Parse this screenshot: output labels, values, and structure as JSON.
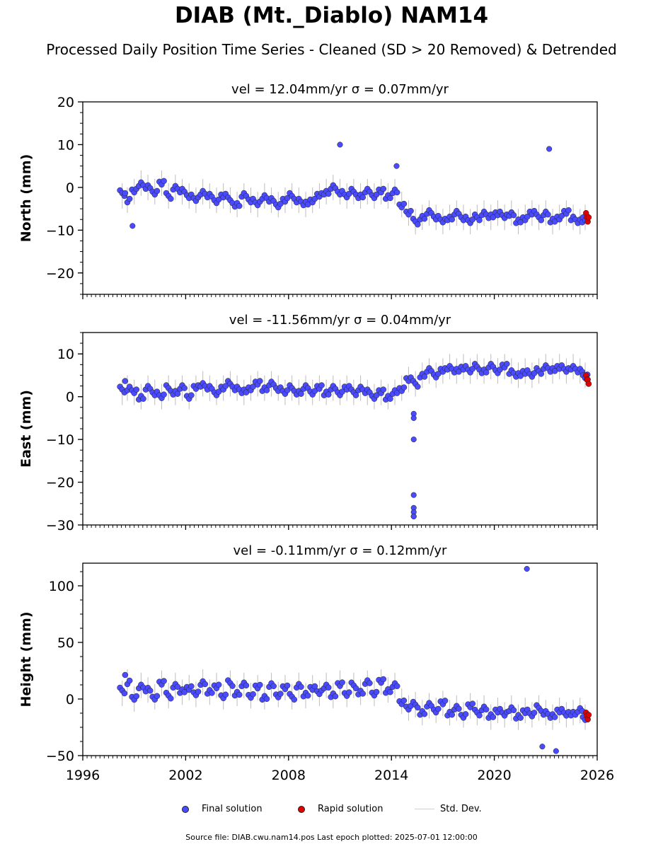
{
  "figure": {
    "title": "DIAB (Mt._Diablo) NAM14",
    "subtitle": "Processed Daily Position Time Series - Cleaned (SD > 20 Removed) & Detrended",
    "footer": "Source file: DIAB.cwu.nam14.pos  Last epoch plotted: 2025-07-01 12:00:00"
  },
  "legend": {
    "final": "Final solution",
    "rapid": "Rapid solution",
    "std": "Std. Dev."
  },
  "colors": {
    "final": "#4a4aff",
    "rapid": "#e00000",
    "std": "#bdbdbd",
    "edge": "#222222"
  },
  "chart_data": [
    {
      "type": "scatter",
      "title": "vel = 12.04mm/yr   σ = 0.07mm/yr",
      "ylabel": "North (mm)",
      "xlim": [
        1996,
        2026
      ],
      "ylim": [
        -25,
        20
      ],
      "xticks": [
        1996,
        2002,
        2008,
        2014,
        2020,
        2026
      ],
      "yticks": [
        20,
        10,
        0,
        -10,
        -20
      ],
      "ytick_labels": [
        "20",
        "10",
        "0",
        "−10",
        "−20"
      ],
      "show_xtick_labels": false,
      "series": [
        {
          "name": "Final solution",
          "x": [
            1998.3,
            1998.6,
            1999.0,
            1999.4,
            1999.8,
            2000.2,
            2000.6,
            2001.0,
            2001.4,
            2001.8,
            2002.2,
            2002.6,
            2003.0,
            2003.4,
            2003.8,
            2004.2,
            2004.6,
            2005.0,
            2005.4,
            2005.8,
            2006.2,
            2006.6,
            2007.0,
            2007.4,
            2007.8,
            2008.2,
            2008.6,
            2009.0,
            2009.4,
            2009.8,
            2010.2,
            2010.6,
            2011.0,
            2011.4,
            2011.8,
            2012.2,
            2012.6,
            2013.0,
            2013.4,
            2013.8,
            2014.2,
            2014.6,
            2015.0,
            2015.4,
            2015.8,
            2016.2,
            2016.6,
            2017.0,
            2017.4,
            2017.8,
            2018.2,
            2018.6,
            2019.0,
            2019.4,
            2019.8,
            2020.2,
            2020.6,
            2021.0,
            2021.4,
            2021.8,
            2022.2,
            2022.6,
            2023.0,
            2023.4,
            2023.8,
            2024.2,
            2024.6,
            2025.0,
            2025.3
          ],
          "y": [
            -2,
            -3,
            -1,
            1,
            0,
            -1,
            1,
            -2,
            0,
            -1,
            -2,
            -3,
            -1,
            -2,
            -3,
            -2,
            -3,
            -4,
            -2,
            -3,
            -4,
            -2,
            -3,
            -4,
            -3,
            -2,
            -3,
            -4,
            -3,
            -2,
            -1,
            0,
            -1,
            -2,
            -1,
            -2,
            -1,
            -2,
            -1,
            -2,
            -1,
            -4,
            -6,
            -8,
            -7,
            -6,
            -7,
            -8,
            -7,
            -6,
            -7,
            -8,
            -7,
            -6,
            -7,
            -6,
            -7,
            -6,
            -8,
            -7,
            -6,
            -7,
            -6,
            -8,
            -7,
            -6,
            -7,
            -8,
            -7
          ]
        },
        {
          "name": "Rapid solution",
          "x": [
            2025.35,
            2025.4,
            2025.45,
            2025.5
          ],
          "y": [
            -6,
            -7,
            -8,
            -7
          ]
        }
      ],
      "outliers": {
        "x": [
          1998.9,
          2011.0,
          2014.3,
          2023.2
        ],
        "y": [
          -9,
          10,
          5,
          9
        ]
      }
    },
    {
      "type": "scatter",
      "title": "vel = -11.56mm/yr   σ = 0.04mm/yr",
      "ylabel": "East (mm)",
      "xlim": [
        1996,
        2026
      ],
      "ylim": [
        -30,
        15
      ],
      "xticks": [
        1996,
        2002,
        2008,
        2014,
        2020,
        2026
      ],
      "yticks": [
        10,
        0,
        -10,
        -20,
        -30
      ],
      "ytick_labels": [
        "10",
        "0",
        "−10",
        "−20",
        "−30"
      ],
      "show_xtick_labels": false,
      "series": [
        {
          "name": "Final solution",
          "x": [
            1998.3,
            1998.6,
            1999.0,
            1999.4,
            1999.8,
            2000.2,
            2000.6,
            2001.0,
            2001.4,
            2001.8,
            2002.2,
            2002.6,
            2003.0,
            2003.4,
            2003.8,
            2004.2,
            2004.6,
            2005.0,
            2005.4,
            2005.8,
            2006.2,
            2006.6,
            2007.0,
            2007.4,
            2007.8,
            2008.2,
            2008.6,
            2009.0,
            2009.4,
            2009.8,
            2010.2,
            2010.6,
            2011.0,
            2011.4,
            2011.8,
            2012.2,
            2012.6,
            2013.0,
            2013.4,
            2013.8,
            2014.2,
            2014.6,
            2015.0,
            2015.4,
            2015.8,
            2016.2,
            2016.6,
            2017.0,
            2017.4,
            2017.8,
            2018.2,
            2018.6,
            2019.0,
            2019.4,
            2019.8,
            2020.2,
            2020.6,
            2021.0,
            2021.4,
            2021.8,
            2022.2,
            2022.6,
            2023.0,
            2023.4,
            2023.8,
            2024.2,
            2024.6,
            2025.0,
            2025.3
          ],
          "y": [
            1,
            2,
            1,
            0,
            2,
            1,
            0,
            2,
            1,
            2,
            0,
            2,
            3,
            2,
            1,
            2,
            3,
            2,
            1,
            2,
            3,
            2,
            3,
            2,
            1,
            2,
            1,
            2,
            1,
            2,
            1,
            2,
            1,
            2,
            1,
            2,
            1,
            0,
            1,
            0,
            1,
            2,
            4,
            3,
            5,
            6,
            5,
            6,
            7,
            6,
            7,
            6,
            7,
            6,
            7,
            6,
            7,
            6,
            5,
            6,
            5,
            6,
            7,
            6,
            7,
            6,
            7,
            6,
            5
          ]
        },
        {
          "name": "Rapid solution",
          "x": [
            2025.35,
            2025.4,
            2025.45,
            2025.5
          ],
          "y": [
            5,
            4,
            4,
            3
          ]
        }
      ],
      "outliers": {
        "x": [
          2015.3,
          2015.3,
          2015.3,
          2015.3,
          2015.3,
          2015.3,
          2015.3,
          2015.3
        ],
        "y": [
          -10,
          -23,
          -26,
          -27,
          -28,
          -28,
          -4,
          -5
        ]
      }
    },
    {
      "type": "scatter",
      "title": "vel = -0.11mm/yr   σ = 0.12mm/yr",
      "ylabel": "Height (mm)",
      "xlim": [
        1996,
        2026
      ],
      "ylim": [
        -50,
        120
      ],
      "xticks": [
        1996,
        2002,
        2008,
        2014,
        2020,
        2026
      ],
      "yticks": [
        100,
        50,
        0,
        -50
      ],
      "ytick_labels": [
        "100",
        "50",
        "0",
        "−50"
      ],
      "show_xtick_labels": true,
      "series": [
        {
          "name": "Final solution",
          "x": [
            1998.3,
            1998.6,
            1999.0,
            1999.4,
            1999.8,
            2000.2,
            2000.6,
            2001.0,
            2001.4,
            2001.8,
            2002.2,
            2002.6,
            2003.0,
            2003.4,
            2003.8,
            2004.2,
            2004.6,
            2005.0,
            2005.4,
            2005.8,
            2006.2,
            2006.6,
            2007.0,
            2007.4,
            2007.8,
            2008.2,
            2008.6,
            2009.0,
            2009.4,
            2009.8,
            2010.2,
            2010.6,
            2011.0,
            2011.4,
            2011.8,
            2012.2,
            2012.6,
            2013.0,
            2013.4,
            2013.8,
            2014.2,
            2014.6,
            2015.0,
            2015.4,
            2015.8,
            2016.2,
            2016.6,
            2017.0,
            2017.4,
            2017.8,
            2018.2,
            2018.6,
            2019.0,
            2019.4,
            2019.8,
            2020.2,
            2020.6,
            2021.0,
            2021.4,
            2021.8,
            2022.2,
            2022.6,
            2023.0,
            2023.4,
            2023.8,
            2024.2,
            2024.6,
            2025.0,
            2025.3
          ],
          "y": [
            5,
            15,
            0,
            12,
            8,
            2,
            14,
            3,
            12,
            6,
            10,
            4,
            15,
            6,
            12,
            2,
            14,
            5,
            12,
            3,
            10,
            2,
            12,
            4,
            10,
            2,
            12,
            3,
            10,
            5,
            12,
            3,
            14,
            4,
            12,
            6,
            14,
            5,
            15,
            8,
            12,
            -2,
            -8,
            -5,
            -12,
            -6,
            -10,
            -4,
            -12,
            -8,
            -14,
            -6,
            -12,
            -8,
            -16,
            -10,
            -14,
            -8,
            -16,
            -10,
            -14,
            -8,
            -12,
            -16,
            -10,
            -14,
            -12,
            -10,
            -16
          ]
        },
        {
          "name": "Rapid solution",
          "x": [
            2025.35,
            2025.4,
            2025.45,
            2025.5
          ],
          "y": [
            -12,
            -15,
            -18,
            -14
          ]
        }
      ],
      "outliers": {
        "x": [
          2021.9,
          2022.8,
          2023.6
        ],
        "y": [
          115,
          -42,
          -46
        ]
      }
    }
  ]
}
